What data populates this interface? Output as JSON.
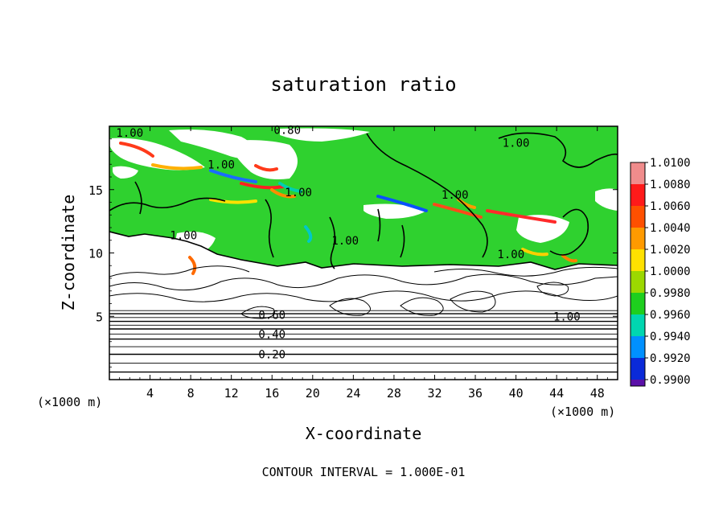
{
  "chart_data": {
    "type": "heatmap",
    "title": "saturation ratio",
    "xlabel": "X-coordinate",
    "ylabel": "Z-coordinate",
    "x_units": "(×1000 m)",
    "y_units": "(×1000 m)",
    "xlim": [
      0,
      50
    ],
    "ylim": [
      0,
      20
    ],
    "x_ticks": [
      4,
      8,
      12,
      16,
      20,
      24,
      28,
      32,
      36,
      40,
      44,
      48
    ],
    "y_ticks": [
      5,
      10,
      15
    ],
    "footnote": "CONTOUR INTERVAL = 1.000E-01",
    "colorbar": {
      "levels": [
        "1.0100",
        "1.0080",
        "1.0060",
        "1.0040",
        "1.0020",
        "1.0000",
        "0.9980",
        "0.9960",
        "0.9940",
        "0.9920",
        "0.9900"
      ],
      "colors": [
        "#f08c8c",
        "#ff1a1a",
        "#ff5000",
        "#ff9a00",
        "#ffe100",
        "#9cd800",
        "#1ecf1e",
        "#00d6b0",
        "#0090ff",
        "#0a2ad8",
        "#5a10a8"
      ]
    },
    "contour_labels": [
      {
        "text": "1.00",
        "x": 2.0,
        "z": 19.5
      },
      {
        "text": "0.80",
        "x": 17.5,
        "z": 19.7
      },
      {
        "text": "1.00",
        "x": 40.0,
        "z": 18.7
      },
      {
        "text": "1.00",
        "x": 11.0,
        "z": 17.0
      },
      {
        "text": "1.00",
        "x": 18.6,
        "z": 14.8
      },
      {
        "text": "1.00",
        "x": 34.0,
        "z": 14.6
      },
      {
        "text": "1.00",
        "x": 7.3,
        "z": 11.4
      },
      {
        "text": "1.00",
        "x": 23.2,
        "z": 11.0
      },
      {
        "text": "1.00",
        "x": 39.5,
        "z": 9.9
      },
      {
        "text": "0.60",
        "x": 16.0,
        "z": 5.1
      },
      {
        "text": "0.40",
        "x": 16.0,
        "z": 3.6
      },
      {
        "text": "0.20",
        "x": 16.0,
        "z": 2.0
      },
      {
        "text": "1.00",
        "x": 45.0,
        "z": 5.0
      }
    ],
    "stable_contours_z": [
      0.6,
      1.3,
      2.0,
      2.6,
      3.2,
      3.6,
      4.0,
      4.3,
      4.6,
      4.9,
      5.2,
      5.45
    ]
  }
}
